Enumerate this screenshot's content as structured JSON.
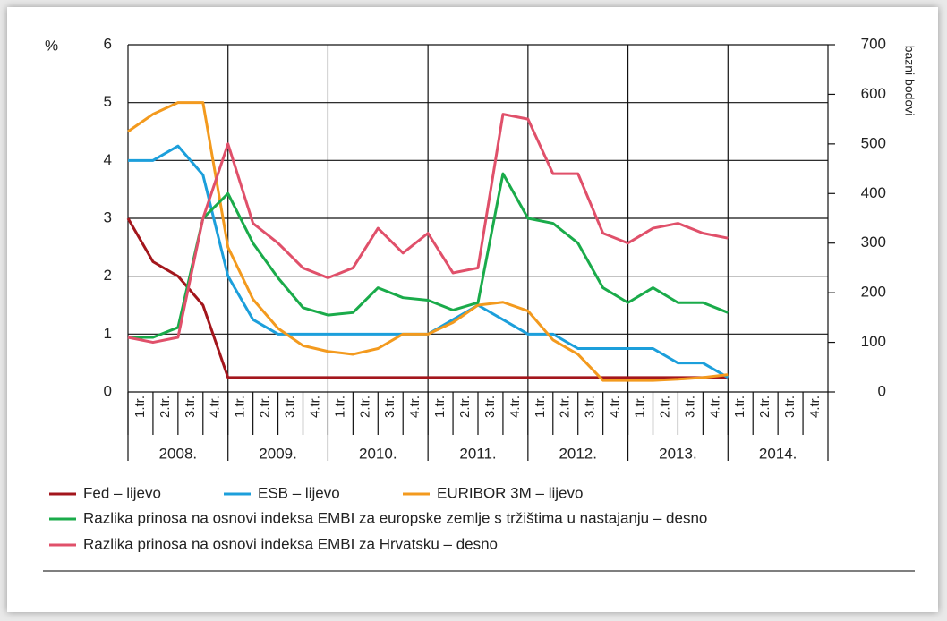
{
  "chart_data": {
    "type": "line",
    "y_label": "%",
    "y2_label": "bazni bodovi",
    "categories": [
      "1.tr.",
      "2.tr.",
      "3.tr.",
      "4.tr.",
      "1.tr.",
      "2.tr.",
      "3.tr.",
      "4.tr.",
      "1.tr.",
      "2.tr.",
      "3.tr.",
      "4.tr.",
      "1.tr.",
      "2.tr.",
      "3.tr.",
      "4.tr.",
      "1.tr.",
      "2.tr.",
      "3.tr.",
      "4.tr.",
      "1.tr.",
      "2.tr.",
      "3.tr.",
      "4.tr.",
      "1.tr.",
      "2.tr.",
      "3.tr.",
      "4.tr."
    ],
    "years": [
      "2008.",
      "2009.",
      "2010.",
      "2011.",
      "2012.",
      "2013.",
      "2014."
    ],
    "ylim": [
      0,
      6
    ],
    "yticks": [
      0,
      1,
      2,
      3,
      4,
      5,
      6
    ],
    "y2lim": [
      0,
      700
    ],
    "y2ticks": [
      0,
      100,
      200,
      300,
      400,
      500,
      600,
      700
    ],
    "grid": true,
    "series": [
      {
        "name": "Fed – lijevo",
        "color": "#a3161c",
        "values": [
          3,
          2.25,
          2,
          1.5,
          0.25,
          0.25,
          0.25,
          0.25,
          0.25,
          0.25,
          0.25,
          0.25,
          0.25,
          0.25,
          0.25,
          0.25,
          0.25,
          0.25,
          0.25,
          0.25,
          0.25,
          0.25,
          0.25,
          0.25,
          0.25,
          null,
          null,
          null
        ]
      },
      {
        "name": "ESB – lijevo",
        "color": "#1c9fdb",
        "values": [
          4,
          4,
          4.25,
          3.75,
          2,
          1.25,
          1,
          1,
          1,
          1,
          1,
          1,
          1,
          1.25,
          1.5,
          1.25,
          1,
          1,
          0.75,
          0.75,
          0.75,
          0.75,
          0.5,
          0.5,
          0.25,
          null,
          null,
          null
        ]
      },
      {
        "name": "EURIBOR 3M – lijevo",
        "color": "#f39a1e",
        "values": [
          4.5,
          4.8,
          5,
          5,
          2.5,
          1.6,
          1.1,
          0.8,
          0.7,
          0.65,
          0.75,
          1,
          1,
          1.2,
          1.5,
          1.55,
          1.4,
          0.9,
          0.65,
          0.2,
          0.2,
          0.2,
          0.22,
          0.25,
          0.3,
          null,
          null,
          null
        ]
      },
      {
        "name": "Razlika prinosa na osnovi indeksa EMBI za europske zemlje s tržištima u nastajanju – desno",
        "color": "#1aab4a",
        "axis": "y2",
        "values": [
          110,
          110,
          130,
          350,
          400,
          300,
          230,
          170,
          155,
          160,
          210,
          190,
          185,
          165,
          180,
          440,
          350,
          340,
          300,
          210,
          180,
          210,
          180,
          180,
          160,
          null,
          null,
          null
        ]
      },
      {
        "name": "Razlika prinosa na osnovi indeksa EMBI za Hrvatsku – desno",
        "color": "#e0506a",
        "axis": "y2",
        "values": [
          110,
          100,
          110,
          350,
          500,
          340,
          300,
          250,
          230,
          250,
          330,
          280,
          320,
          240,
          250,
          560,
          550,
          440,
          440,
          320,
          300,
          330,
          340,
          320,
          310,
          null,
          null,
          null
        ]
      }
    ]
  }
}
